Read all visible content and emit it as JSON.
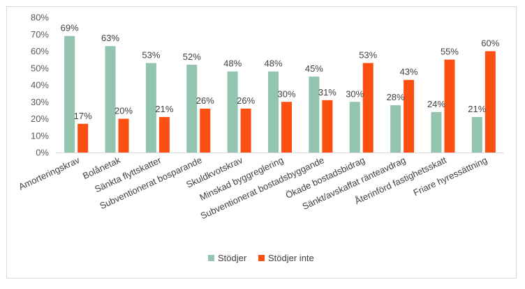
{
  "chart_data": {
    "type": "bar",
    "categories": [
      "Amorteringskrav",
      "Bolånetak",
      "Sänkta flyttskatter",
      "Subventionerat bosparande",
      "Skuldkvotskrav",
      "Minskad byggreglering",
      "Subventionerat bostadsbyggande",
      "Ökade bostadsbidrag",
      "Sänkt/avskaffat ränteavdrag",
      "Återinförd fastighetsskatt",
      "Friare hyressättning"
    ],
    "series": [
      {
        "name": "Stödjer",
        "values": [
          69,
          63,
          53,
          52,
          48,
          48,
          45,
          30,
          28,
          24,
          21
        ],
        "color": "#93c4ae"
      },
      {
        "name": "Stödjer inte",
        "values": [
          17,
          20,
          21,
          26,
          26,
          30,
          31,
          53,
          43,
          55,
          60
        ],
        "color": "#fc4f12"
      }
    ],
    "ylim": [
      0,
      80
    ],
    "yticks": [
      0,
      10,
      20,
      30,
      40,
      50,
      60,
      70,
      80
    ],
    "ytick_suffix": "%",
    "data_label_suffix": "%",
    "grid": false,
    "legend": "bottom"
  }
}
